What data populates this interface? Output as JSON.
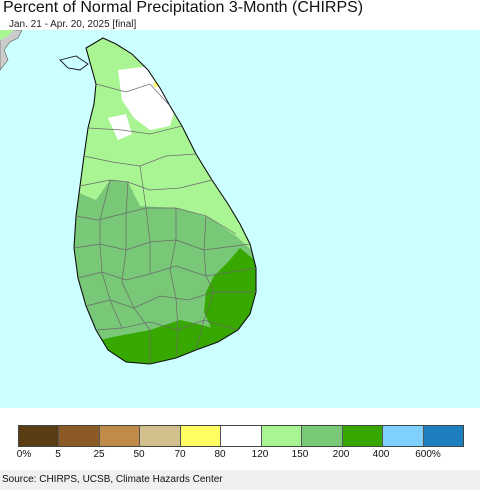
{
  "header": {
    "title": "Percent of Normal Precipitation 3-Month (CHIRPS)",
    "subtitle": "Jan. 21 - Apr. 20, 2025 [final]"
  },
  "map": {
    "region": "Sri Lanka",
    "ocean_color": "#ccffff",
    "land_colors": {
      "pct_80_120": "#ffffff",
      "pct_120_150": "#aaf593",
      "pct_150_200": "#78c878",
      "pct_200_400": "#37a800",
      "pct_70_80": "#ffff64",
      "neighbor_land": "#cccccc"
    }
  },
  "legend": {
    "colors": [
      "#5a3d13",
      "#8c5a24",
      "#c08a48",
      "#d2c08c",
      "#ffff64",
      "#ffffff",
      "#aaf593",
      "#78c878",
      "#37a800",
      "#7fcfff",
      "#1e7fbe"
    ],
    "labels": [
      "0%",
      "5",
      "25",
      "50",
      "70",
      "80",
      "120",
      "150",
      "200",
      "400",
      "600%"
    ]
  },
  "footer": {
    "source": "Source: CHIRPS, UCSB, Climate Hazards Center"
  }
}
